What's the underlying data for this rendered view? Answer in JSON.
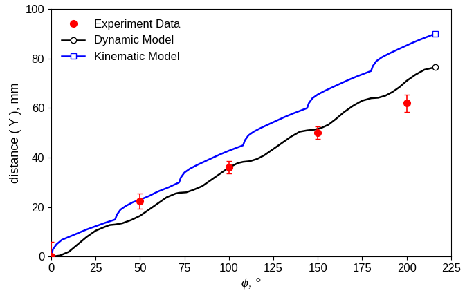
{
  "chart_data": {
    "type": "line",
    "x_label": "ϕ, °",
    "y_label": "distance ( Y ), mm",
    "xlim": [
      0,
      225
    ],
    "xticks": [
      0,
      25,
      50,
      75,
      100,
      125,
      150,
      175,
      200,
      225
    ],
    "ylim": [
      0,
      100
    ],
    "yticks": [
      0,
      20,
      40,
      60,
      80,
      100
    ],
    "legend": "upper left",
    "series": [
      {
        "name": "Experiment Data",
        "type": "scatter",
        "color": "#ff0000",
        "marker": "o",
        "x": [
          0,
          50,
          100,
          150,
          200
        ],
        "values": [
          0,
          22.5,
          36,
          50,
          62
        ],
        "errors": [
          6,
          3,
          2.5,
          2.5,
          3.5
        ]
      },
      {
        "name": "Dynamic Model",
        "type": "line",
        "color": "#000000",
        "marker": "o",
        "line_style": "solid",
        "x": [
          0,
          5,
          10,
          15,
          20,
          25,
          30,
          33,
          36,
          40,
          45,
          50,
          55,
          60,
          65,
          70,
          72,
          76,
          80,
          85,
          90,
          95,
          100,
          105,
          108,
          112,
          116,
          120,
          125,
          130,
          135,
          140,
          144,
          148,
          152,
          156,
          160,
          165,
          170,
          175,
          180,
          184,
          188,
          192,
          196,
          200,
          205,
          210,
          216
        ],
        "values": [
          0,
          0.5,
          2,
          5,
          8,
          10.5,
          12,
          12.8,
          13,
          13.5,
          14.8,
          16.5,
          19,
          21.5,
          24,
          25.5,
          25.8,
          26,
          27,
          28.5,
          31,
          33.5,
          36,
          37.8,
          38.3,
          38.6,
          39.5,
          41,
          43.5,
          46,
          48.5,
          50.5,
          51,
          51.3,
          52,
          53.3,
          55.5,
          58.5,
          61,
          63,
          64,
          64.2,
          65,
          66.5,
          68.5,
          71,
          73.5,
          75.5,
          76.5
        ]
      },
      {
        "name": "Kinematic Model",
        "type": "line",
        "color": "#0000ff",
        "marker": "s",
        "line_style": "solid",
        "x": [
          0,
          1,
          3,
          6,
          10,
          15,
          20,
          25,
          30,
          36,
          37,
          39,
          42,
          46,
          50,
          55,
          60,
          66,
          72,
          73,
          75,
          78,
          82,
          88,
          95,
          100,
          108,
          109,
          111,
          114,
          118,
          124,
          131,
          136,
          144,
          145,
          147,
          150,
          154,
          160,
          167,
          172,
          180,
          181,
          183,
          186,
          190,
          196,
          203,
          208,
          216
        ],
        "values": [
          0,
          3,
          5,
          6.8,
          8,
          9.5,
          11,
          12.3,
          13.6,
          15,
          17,
          19,
          20.5,
          22,
          23,
          24.5,
          26.3,
          28,
          30,
          32,
          34,
          35.5,
          37,
          39,
          41.3,
          42.8,
          45,
          47,
          49,
          50.5,
          52,
          54,
          56.3,
          57.8,
          60,
          62,
          64,
          65.5,
          67,
          69,
          71.3,
          72.8,
          75,
          77,
          79,
          80.5,
          82,
          84,
          86.3,
          87.8,
          90
        ]
      }
    ]
  }
}
